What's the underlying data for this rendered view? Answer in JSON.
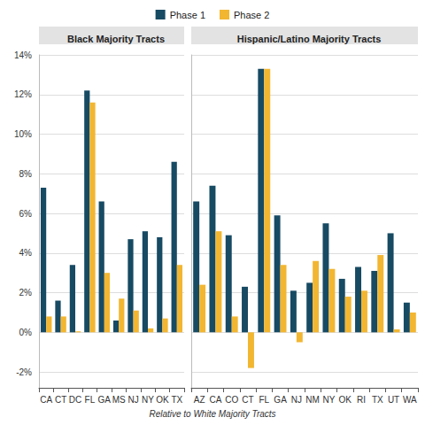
{
  "chart_data": {
    "type": "bar",
    "x_label": "Relative to White Majority Tracts",
    "legend": "top",
    "grid": true,
    "ylim": [
      -2.8,
      14
    ],
    "yticks": [
      {
        "value": -2,
        "label": "-2%"
      },
      {
        "value": 0,
        "label": "0%"
      },
      {
        "value": 2,
        "label": "2%"
      },
      {
        "value": 4,
        "label": "4%"
      },
      {
        "value": 6,
        "label": "6%"
      },
      {
        "value": 8,
        "label": "8%"
      },
      {
        "value": 10,
        "label": "10%"
      },
      {
        "value": 12,
        "label": "12%"
      },
      {
        "value": 14,
        "label": "14%"
      }
    ],
    "panels": [
      {
        "title": "Black Majority Tracts",
        "categories": [
          "CA",
          "CT",
          "DC",
          "FL",
          "GA",
          "MS",
          "NJ",
          "NY",
          "OK",
          "TX"
        ],
        "series": [
          {
            "name": "Phase 1",
            "color": "#174a63",
            "values": [
              7.3,
              1.6,
              3.4,
              12.2,
              6.6,
              0.6,
              4.7,
              5.1,
              4.8,
              8.6
            ]
          },
          {
            "name": "Phase 2",
            "color": "#f2b631",
            "values": [
              0.8,
              0.8,
              0.05,
              11.6,
              3.0,
              1.7,
              1.1,
              0.2,
              0.7,
              3.4
            ]
          }
        ]
      },
      {
        "title": "Hispanic/Latino Majority Tracts",
        "categories": [
          "AZ",
          "CA",
          "CO",
          "CT",
          "FL",
          "GA",
          "NJ",
          "NM",
          "NY",
          "OK",
          "RI",
          "TX",
          "UT",
          "WA"
        ],
        "series": [
          {
            "name": "Phase 1",
            "color": "#174a63",
            "values": [
              6.6,
              7.4,
              4.9,
              2.3,
              13.3,
              5.9,
              2.1,
              2.5,
              5.5,
              2.7,
              3.3,
              3.1,
              5.0,
              1.5
            ]
          },
          {
            "name": "Phase 2",
            "color": "#f2b631",
            "values": [
              2.4,
              5.1,
              0.8,
              -1.8,
              13.3,
              3.4,
              -0.5,
              3.6,
              3.2,
              1.8,
              2.1,
              3.9,
              0.15,
              1.0
            ]
          }
        ]
      }
    ]
  }
}
